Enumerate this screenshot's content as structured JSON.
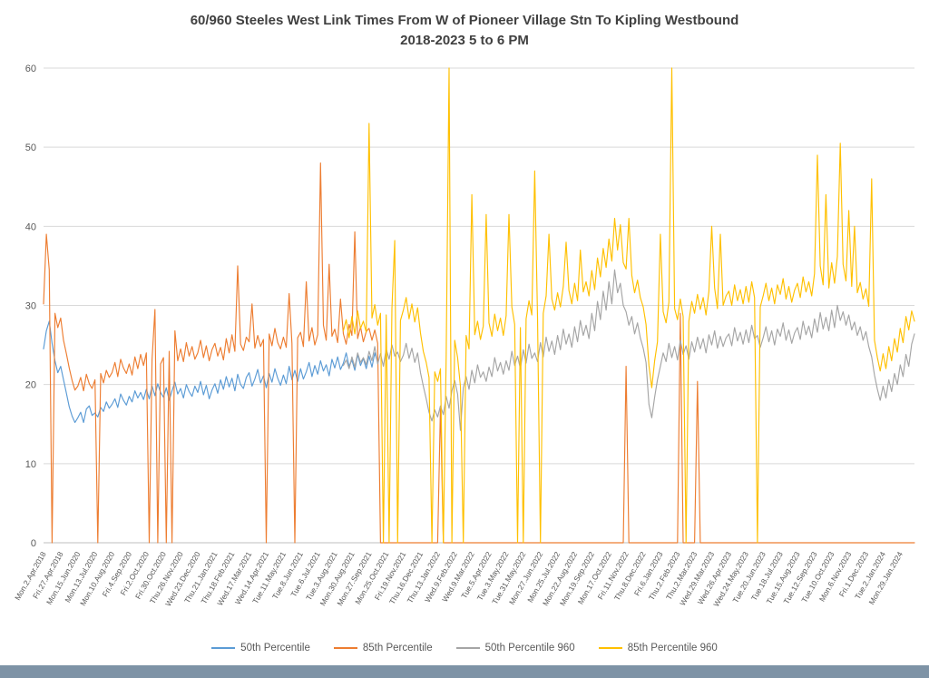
{
  "chart_data": {
    "type": "line",
    "title": "60/960 Steeles West Link Times From W of Pioneer Village Stn To Kipling Westbound",
    "subtitle": "2018-2023 5 to 6 PM",
    "ylabel": "",
    "xlabel": "",
    "ylim": [
      0,
      60
    ],
    "yticks": [
      0,
      10,
      20,
      30,
      40,
      50,
      60
    ],
    "grid": true,
    "legend_position": "bottom",
    "points_per_label_interval": 6,
    "x_tick_labels": [
      "Mon.2.Apr.2018",
      "Fri.27.Apr.2018",
      "Mon.15.Jun.2020",
      "Mon.13.Jul.2020",
      "Mon.10.Aug.2020",
      "Fri.4.Sep.2020",
      "Fri.2.Oct.2020",
      "Fri.30.Oct.2020",
      "Thu.26.Nov.2020",
      "Wed.23.Dec.2020",
      "Thu.21.Jan.2021",
      "Thu.18.Feb.2021",
      "Wed.17.Mar.2021",
      "Wed.14.Apr.2021",
      "Tue.11.May.2021",
      "Tue.8.Jun.2021",
      "Tue.6.Jul.2021",
      "Tue.3.Aug.2021",
      "Mon.30.Aug.2021",
      "Mon.27.Sep.2021",
      "Mon.25.Oct.2021",
      "Fri.19.Nov.2021",
      "Thu.16.Dec.2021",
      "Thu.13.Jan.2022",
      "Wed.9.Feb.2022",
      "Wed.9.Mar.2022",
      "Tue.5.Apr.2022",
      "Tue.3.May.2022",
      "Tue.31.May.2022",
      "Mon.27.Jun.2022",
      "Mon.25.Jul.2022",
      "Mon.22.Aug.2022",
      "Mon.19.Sep.2022",
      "Mon.17.Oct.2022",
      "Fri.11.Nov.2022",
      "Thu.8.Dec.2022",
      "Fri.6.Jan.2023",
      "Thu.2.Feb.2023",
      "Thu.2.Mar.2023",
      "Wed.29.Mar.2023",
      "Wed.26.Apr.2023",
      "Wed.24.May.2023",
      "Tue.20.Jun.2023",
      "Tue.18.Jul.2023",
      "Tue.15.Aug.2023",
      "Tue.12.Sep.2023",
      "Tue.10.Oct.2023",
      "Mon.6.Nov.2023",
      "Fri.1.Dec.2023",
      "Tue.2.Jan.2024",
      "Mon.29.Jan.2024"
    ],
    "series": [
      {
        "name": "50th Percentile",
        "color": "#5B9BD5",
        "start": 0,
        "values": [
          24.5,
          26.8,
          28.0,
          25.2,
          23.0,
          21.5,
          22.3,
          20.6,
          18.9,
          17.2,
          16.0,
          15.2,
          15.8,
          16.5,
          15.2,
          16.9,
          17.3,
          16.1,
          16.4,
          15.9,
          17.1,
          16.6,
          17.8,
          17.0,
          17.5,
          18.2,
          17.1,
          18.8,
          18.0,
          17.4,
          18.5,
          17.8,
          19.2,
          18.3,
          19.0,
          18.1,
          19.4,
          18.2,
          19.8,
          18.6,
          20.1,
          19.0,
          18.4,
          19.6,
          18.0,
          19.2,
          20.3,
          18.8,
          19.5,
          18.3,
          20.0,
          19.1,
          18.5,
          19.8,
          19.0,
          20.4,
          18.7,
          19.9,
          18.2,
          19.3,
          20.1,
          18.9,
          20.6,
          19.4,
          21.0,
          19.7,
          20.8,
          19.2,
          21.3,
          20.0,
          19.5,
          20.9,
          21.5,
          19.8,
          20.7,
          21.9,
          20.2,
          21.1,
          19.6,
          21.4,
          20.3,
          22.0,
          20.8,
          19.9,
          21.2,
          20.1,
          22.3,
          20.6,
          21.8,
          20.4,
          22.0,
          20.7,
          21.6,
          22.8,
          21.0,
          22.4,
          21.3,
          23.0,
          21.7,
          22.5,
          21.1,
          23.2,
          22.1,
          23.5,
          21.9,
          22.7,
          24.0,
          22.3,
          23.1,
          21.8,
          23.8,
          22.4,
          23.3,
          22.0,
          23.6,
          22.2,
          24.0,
          22.8
        ]
      },
      {
        "name": "85th Percentile",
        "color": "#ED7D31",
        "start": 0,
        "values": [
          30.2,
          39.0,
          34.5,
          0,
          29.0,
          27.2,
          28.4,
          25.6,
          23.9,
          22.1,
          20.5,
          19.3,
          19.8,
          20.9,
          19.2,
          21.3,
          20.1,
          19.5,
          20.6,
          0,
          21.4,
          20.2,
          21.8,
          20.9,
          21.5,
          22.8,
          21.0,
          23.2,
          22.1,
          21.4,
          22.6,
          21.2,
          23.5,
          22.0,
          23.8,
          22.4,
          24.0,
          0,
          23.2,
          29.5,
          0,
          22.6,
          23.4,
          0,
          24.2,
          0,
          26.8,
          23.0,
          24.5,
          22.9,
          25.3,
          23.6,
          24.8,
          23.2,
          24.0,
          25.6,
          23.4,
          24.9,
          23.0,
          24.4,
          25.2,
          23.6,
          24.7,
          23.1,
          25.8,
          24.0,
          26.3,
          24.2,
          35.0,
          25.1,
          24.3,
          26.0,
          25.4,
          30.2,
          24.6,
          26.2,
          24.8,
          25.7,
          0,
          26.4,
          24.9,
          27.1,
          25.3,
          24.5,
          26.0,
          24.7,
          31.5,
          25.2,
          0,
          25.9,
          26.6,
          24.8,
          33.0,
          25.5,
          27.2,
          25.0,
          26.3,
          48.0,
          27.5,
          25.6,
          35.2,
          26.1,
          27.0,
          25.3,
          30.8,
          26.4,
          25.1,
          27.6,
          26.2,
          39.3,
          25.8,
          27.3,
          25.4,
          26.7,
          27.1,
          25.6,
          26.9,
          25.2,
          0,
          0,
          0,
          0,
          0,
          0,
          0,
          0,
          0,
          0,
          0,
          0,
          0,
          0,
          0,
          0,
          0,
          0,
          0,
          0,
          0,
          17.2,
          0,
          0,
          0,
          0,
          0,
          0,
          0,
          0,
          0,
          0,
          0,
          0,
          0,
          0,
          0,
          0,
          0,
          0,
          0,
          0,
          0,
          0,
          0,
          0,
          0,
          0,
          0,
          0,
          0,
          0,
          0,
          0,
          0,
          0,
          0,
          0,
          0,
          0,
          0,
          0,
          0,
          0,
          0,
          0,
          0,
          0,
          0,
          0,
          0,
          0,
          0,
          0,
          0,
          0,
          0,
          0,
          0,
          0,
          0,
          0,
          0,
          0,
          0,
          0,
          22.3,
          0,
          0,
          0,
          0,
          0,
          0,
          0,
          0,
          0,
          0,
          0,
          0,
          0,
          0,
          0,
          0,
          0,
          0,
          29.0,
          0,
          0,
          0,
          0,
          0,
          20.4,
          0,
          0,
          0,
          0,
          0,
          0,
          0,
          0,
          0,
          0,
          0,
          0,
          0,
          0,
          0,
          0,
          0,
          0,
          0,
          0,
          0,
          0,
          0,
          0,
          0,
          0,
          0,
          0,
          0,
          0,
          0,
          0,
          0,
          0,
          0,
          0,
          0,
          0,
          0,
          0,
          0,
          0,
          0,
          0,
          0,
          0,
          0,
          0,
          0,
          0,
          0,
          0,
          0,
          0,
          0,
          0,
          0,
          0,
          0,
          0,
          0,
          0,
          0,
          0,
          0,
          0,
          0,
          0,
          0,
          0,
          0,
          0,
          0,
          0,
          0,
          0
        ]
      },
      {
        "name": "50th Percentile 960",
        "color": "#A5A5A5",
        "start": 105,
        "values": [
          22.4,
          23.1,
          22.0,
          23.5,
          22.2,
          24.0,
          22.8,
          23.4,
          22.5,
          24.2,
          23.0,
          24.8,
          22.6,
          23.9,
          22.3,
          24.5,
          23.2,
          25.0,
          23.6,
          24.1,
          22.9,
          23.7,
          25.2,
          23.3,
          24.6,
          22.8,
          24.0,
          21.5,
          19.8,
          18.2,
          16.5,
          15.4,
          16.8,
          15.9,
          17.3,
          16.2,
          18.5,
          17.0,
          19.2,
          20.5,
          18.8,
          14.2,
          19.6,
          21.0,
          19.4,
          21.8,
          20.2,
          22.5,
          20.9,
          21.6,
          20.4,
          22.2,
          21.0,
          23.4,
          21.7,
          22.8,
          21.3,
          23.0,
          21.8,
          24.2,
          22.4,
          23.6,
          22.0,
          24.4,
          22.7,
          25.1,
          23.3,
          24.0,
          22.9,
          25.3,
          23.5,
          26.0,
          24.2,
          25.5,
          23.8,
          26.2,
          24.4,
          27.0,
          25.1,
          26.4,
          24.7,
          27.3,
          25.4,
          28.1,
          26.2,
          27.5,
          25.8,
          29.0,
          26.8,
          30.5,
          28.2,
          31.8,
          29.4,
          33.0,
          30.2,
          34.5,
          31.6,
          32.8,
          30.0,
          29.2,
          27.5,
          28.6,
          26.4,
          27.8,
          25.9,
          24.6,
          22.8,
          17.5,
          15.8,
          18.4,
          20.6,
          22.3,
          24.0,
          22.9,
          25.2,
          23.4,
          24.8,
          23.1,
          25.6,
          23.8,
          24.9,
          23.2,
          25.4,
          24.1,
          26.0,
          24.5,
          25.8,
          24.0,
          26.3,
          25.0,
          26.8,
          24.6,
          26.1,
          24.8,
          25.9,
          26.4,
          24.9,
          27.2,
          25.5,
          26.6,
          25.1,
          26.9,
          25.3,
          27.5,
          25.8,
          26.2,
          24.7,
          25.9,
          27.3,
          25.4,
          26.8,
          25.0,
          27.0,
          26.1,
          27.8,
          25.6,
          26.9,
          25.2,
          26.5,
          27.2,
          25.7,
          28.0,
          26.3,
          27.4,
          25.9,
          28.3,
          26.6,
          29.1,
          27.0,
          28.5,
          26.8,
          29.4,
          27.2,
          30.0,
          28.1,
          29.2,
          27.5,
          28.8,
          26.9,
          27.9,
          26.2,
          27.3,
          25.6,
          26.7,
          24.8,
          23.5,
          21.2,
          19.4,
          18.0,
          19.8,
          18.3,
          20.6,
          19.1,
          21.4,
          20.0,
          22.5,
          21.0,
          23.8,
          22.3,
          25.1,
          26.4
        ]
      },
      {
        "name": "85th Percentile 960",
        "color": "#FFC000",
        "start": 105,
        "values": [
          26.8,
          28.2,
          25.9,
          28.6,
          26.4,
          29.3,
          27.1,
          28.0,
          26.6,
          53.0,
          28.4,
          30.1,
          27.5,
          29.0,
          0,
          28.8,
          0,
          29.6,
          38.2,
          0,
          28.1,
          29.4,
          31.0,
          28.3,
          30.2,
          27.9,
          29.7,
          26.5,
          24.2,
          22.8,
          20.9,
          0,
          21.6,
          20.4,
          22.0,
          0,
          23.5,
          60.0,
          0,
          25.6,
          23.4,
          19.8,
          0,
          26.2,
          24.5,
          44.0,
          26.3,
          28.0,
          25.7,
          27.4,
          41.5,
          27.8,
          26.1,
          28.9,
          26.8,
          28.4,
          26.2,
          28.7,
          41.5,
          29.8,
          27.6,
          0,
          27.2,
          0,
          28.3,
          30.6,
          28.8,
          47.0,
          28.5,
          0,
          29.0,
          31.2,
          39.0,
          30.8,
          29.4,
          31.6,
          29.8,
          32.4,
          38.0,
          31.9,
          30.2,
          32.8,
          30.6,
          37.0,
          31.7,
          33.0,
          31.2,
          34.4,
          32.0,
          36.0,
          33.6,
          37.2,
          34.8,
          38.4,
          35.6,
          41.0,
          37.0,
          40.2,
          35.4,
          34.6,
          41.0,
          33.8,
          31.6,
          33.2,
          31.0,
          29.8,
          27.6,
          22.4,
          19.6,
          23.0,
          25.4,
          39.0,
          29.2,
          27.8,
          30.4,
          60.0,
          29.6,
          28.2,
          30.8,
          28.6,
          0,
          28.0,
          30.5,
          29.0,
          31.4,
          29.5,
          31.0,
          28.8,
          31.8,
          40.0,
          32.2,
          29.6,
          39.0,
          30.0,
          31.2,
          31.8,
          30.0,
          32.6,
          30.6,
          32.0,
          30.2,
          32.4,
          30.4,
          33.0,
          31.0,
          0,
          29.8,
          31.2,
          32.8,
          30.6,
          32.2,
          30.2,
          32.6,
          31.4,
          33.4,
          30.8,
          32.4,
          30.4,
          31.9,
          32.8,
          31.0,
          33.6,
          31.7,
          33.0,
          31.2,
          34.0,
          49.0,
          35.0,
          32.6,
          44.0,
          32.2,
          35.4,
          32.8,
          36.2,
          50.5,
          35.2,
          33.1,
          42.0,
          32.4,
          40.0,
          31.6,
          32.9,
          30.8,
          32.1,
          29.9,
          46.0,
          25.6,
          23.4,
          21.7,
          23.9,
          22.0,
          24.8,
          23.0,
          25.8,
          24.1,
          27.1,
          25.3,
          28.6,
          26.9,
          29.3,
          28.0
        ]
      }
    ],
    "colors": {
      "gridline": "#D9D9D9",
      "axis": "#BFBFBF",
      "tick_text": "#595959",
      "title_text": "#404040",
      "bottom_bar": "#7E93A6"
    }
  }
}
